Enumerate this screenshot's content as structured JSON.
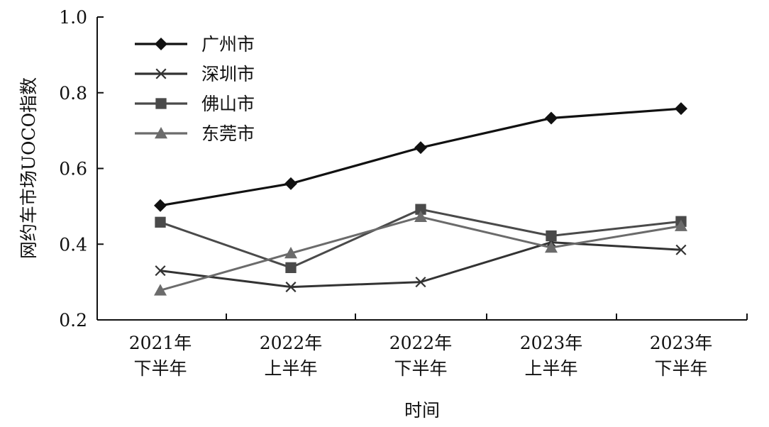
{
  "chart_data": {
    "type": "line",
    "title": "",
    "xlabel": "时间",
    "ylabel": "网约车市场UOCO指数",
    "ylim": [
      0.2,
      1.0
    ],
    "yticks": [
      "0.2",
      "0.4",
      "0.6",
      "0.8",
      "1.0"
    ],
    "categories": [
      [
        "2021年",
        "下半年"
      ],
      [
        "2022年",
        "上半年"
      ],
      [
        "2022年",
        "下半年"
      ],
      [
        "2023年",
        "上半年"
      ],
      [
        "2023年",
        "下半年"
      ]
    ],
    "grid": false,
    "legend_position": "top-left",
    "series": [
      {
        "name": "广州市",
        "values": [
          0.502,
          0.56,
          0.655,
          0.733,
          0.758
        ],
        "marker": "diamond",
        "color": "#111111"
      },
      {
        "name": "深圳市",
        "values": [
          0.33,
          0.287,
          0.3,
          0.405,
          0.385
        ],
        "marker": "x",
        "color": "#333333"
      },
      {
        "name": "佛山市",
        "values": [
          0.458,
          0.338,
          0.492,
          0.422,
          0.46
        ],
        "marker": "square",
        "color": "#4a4a4a"
      },
      {
        "name": "东莞市",
        "values": [
          0.278,
          0.376,
          0.472,
          0.391,
          0.448
        ],
        "marker": "triangle",
        "color": "#6b6b6b"
      }
    ]
  }
}
